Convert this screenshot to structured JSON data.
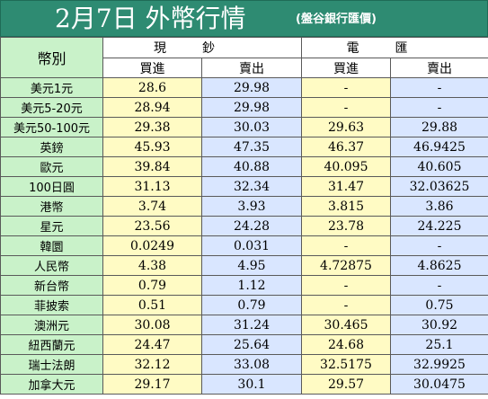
{
  "title": {
    "main": "2月7日 外幣行情",
    "sub": "(盤谷銀行匯價)"
  },
  "headers": {
    "currency": "幣別",
    "cash": "現鈔",
    "telegraphic": "電匯",
    "buy": "買進",
    "sell": "賣出"
  },
  "colors": {
    "title_bg": "#2e8b72",
    "name_bg": "#c9f2c9",
    "buy_bg": "#fffbc4",
    "sell_bg": "#d9e6ff"
  },
  "rows": [
    {
      "name": "美元1元",
      "cash_buy": "28.6",
      "cash_sell": "29.98",
      "tt_buy": "-",
      "tt_sell": "-"
    },
    {
      "name": "美元5-20元",
      "cash_buy": "28.94",
      "cash_sell": "29.98",
      "tt_buy": "-",
      "tt_sell": "-"
    },
    {
      "name": "美元50-100元",
      "cash_buy": "29.38",
      "cash_sell": "30.03",
      "tt_buy": "29.63",
      "tt_sell": "29.88"
    },
    {
      "name": "英鎊",
      "cash_buy": "45.93",
      "cash_sell": "47.35",
      "tt_buy": "46.37",
      "tt_sell": "46.9425"
    },
    {
      "name": "歐元",
      "cash_buy": "39.84",
      "cash_sell": "40.88",
      "tt_buy": "40.095",
      "tt_sell": "40.605"
    },
    {
      "name": "100日圓",
      "cash_buy": "31.13",
      "cash_sell": "32.34",
      "tt_buy": "31.47",
      "tt_sell": "32.03625"
    },
    {
      "name": "港幣",
      "cash_buy": "3.74",
      "cash_sell": "3.93",
      "tt_buy": "3.815",
      "tt_sell": "3.86"
    },
    {
      "name": "星元",
      "cash_buy": "23.56",
      "cash_sell": "24.28",
      "tt_buy": "23.78",
      "tt_sell": "24.225"
    },
    {
      "name": "韓圜",
      "cash_buy": "0.0249",
      "cash_sell": "0.031",
      "tt_buy": "-",
      "tt_sell": "-"
    },
    {
      "name": "人民幣",
      "cash_buy": "4.38",
      "cash_sell": "4.95",
      "tt_buy": "4.72875",
      "tt_sell": "4.8625"
    },
    {
      "name": "新台幣",
      "cash_buy": "0.79",
      "cash_sell": "1.12",
      "tt_buy": "-",
      "tt_sell": "-"
    },
    {
      "name": "菲披索",
      "cash_buy": "0.51",
      "cash_sell": "0.79",
      "tt_buy": "-",
      "tt_sell": "0.75"
    },
    {
      "name": "澳洲元",
      "cash_buy": "30.08",
      "cash_sell": "31.24",
      "tt_buy": "30.465",
      "tt_sell": "30.92"
    },
    {
      "name": "紐西蘭元",
      "cash_buy": "24.47",
      "cash_sell": "25.64",
      "tt_buy": "24.68",
      "tt_sell": "25.1"
    },
    {
      "name": "瑞士法朗",
      "cash_buy": "32.12",
      "cash_sell": "33.08",
      "tt_buy": "32.5175",
      "tt_sell": "32.9925"
    },
    {
      "name": "加拿大元",
      "cash_buy": "29.17",
      "cash_sell": "30.1",
      "tt_buy": "29.57",
      "tt_sell": "30.0475"
    }
  ]
}
